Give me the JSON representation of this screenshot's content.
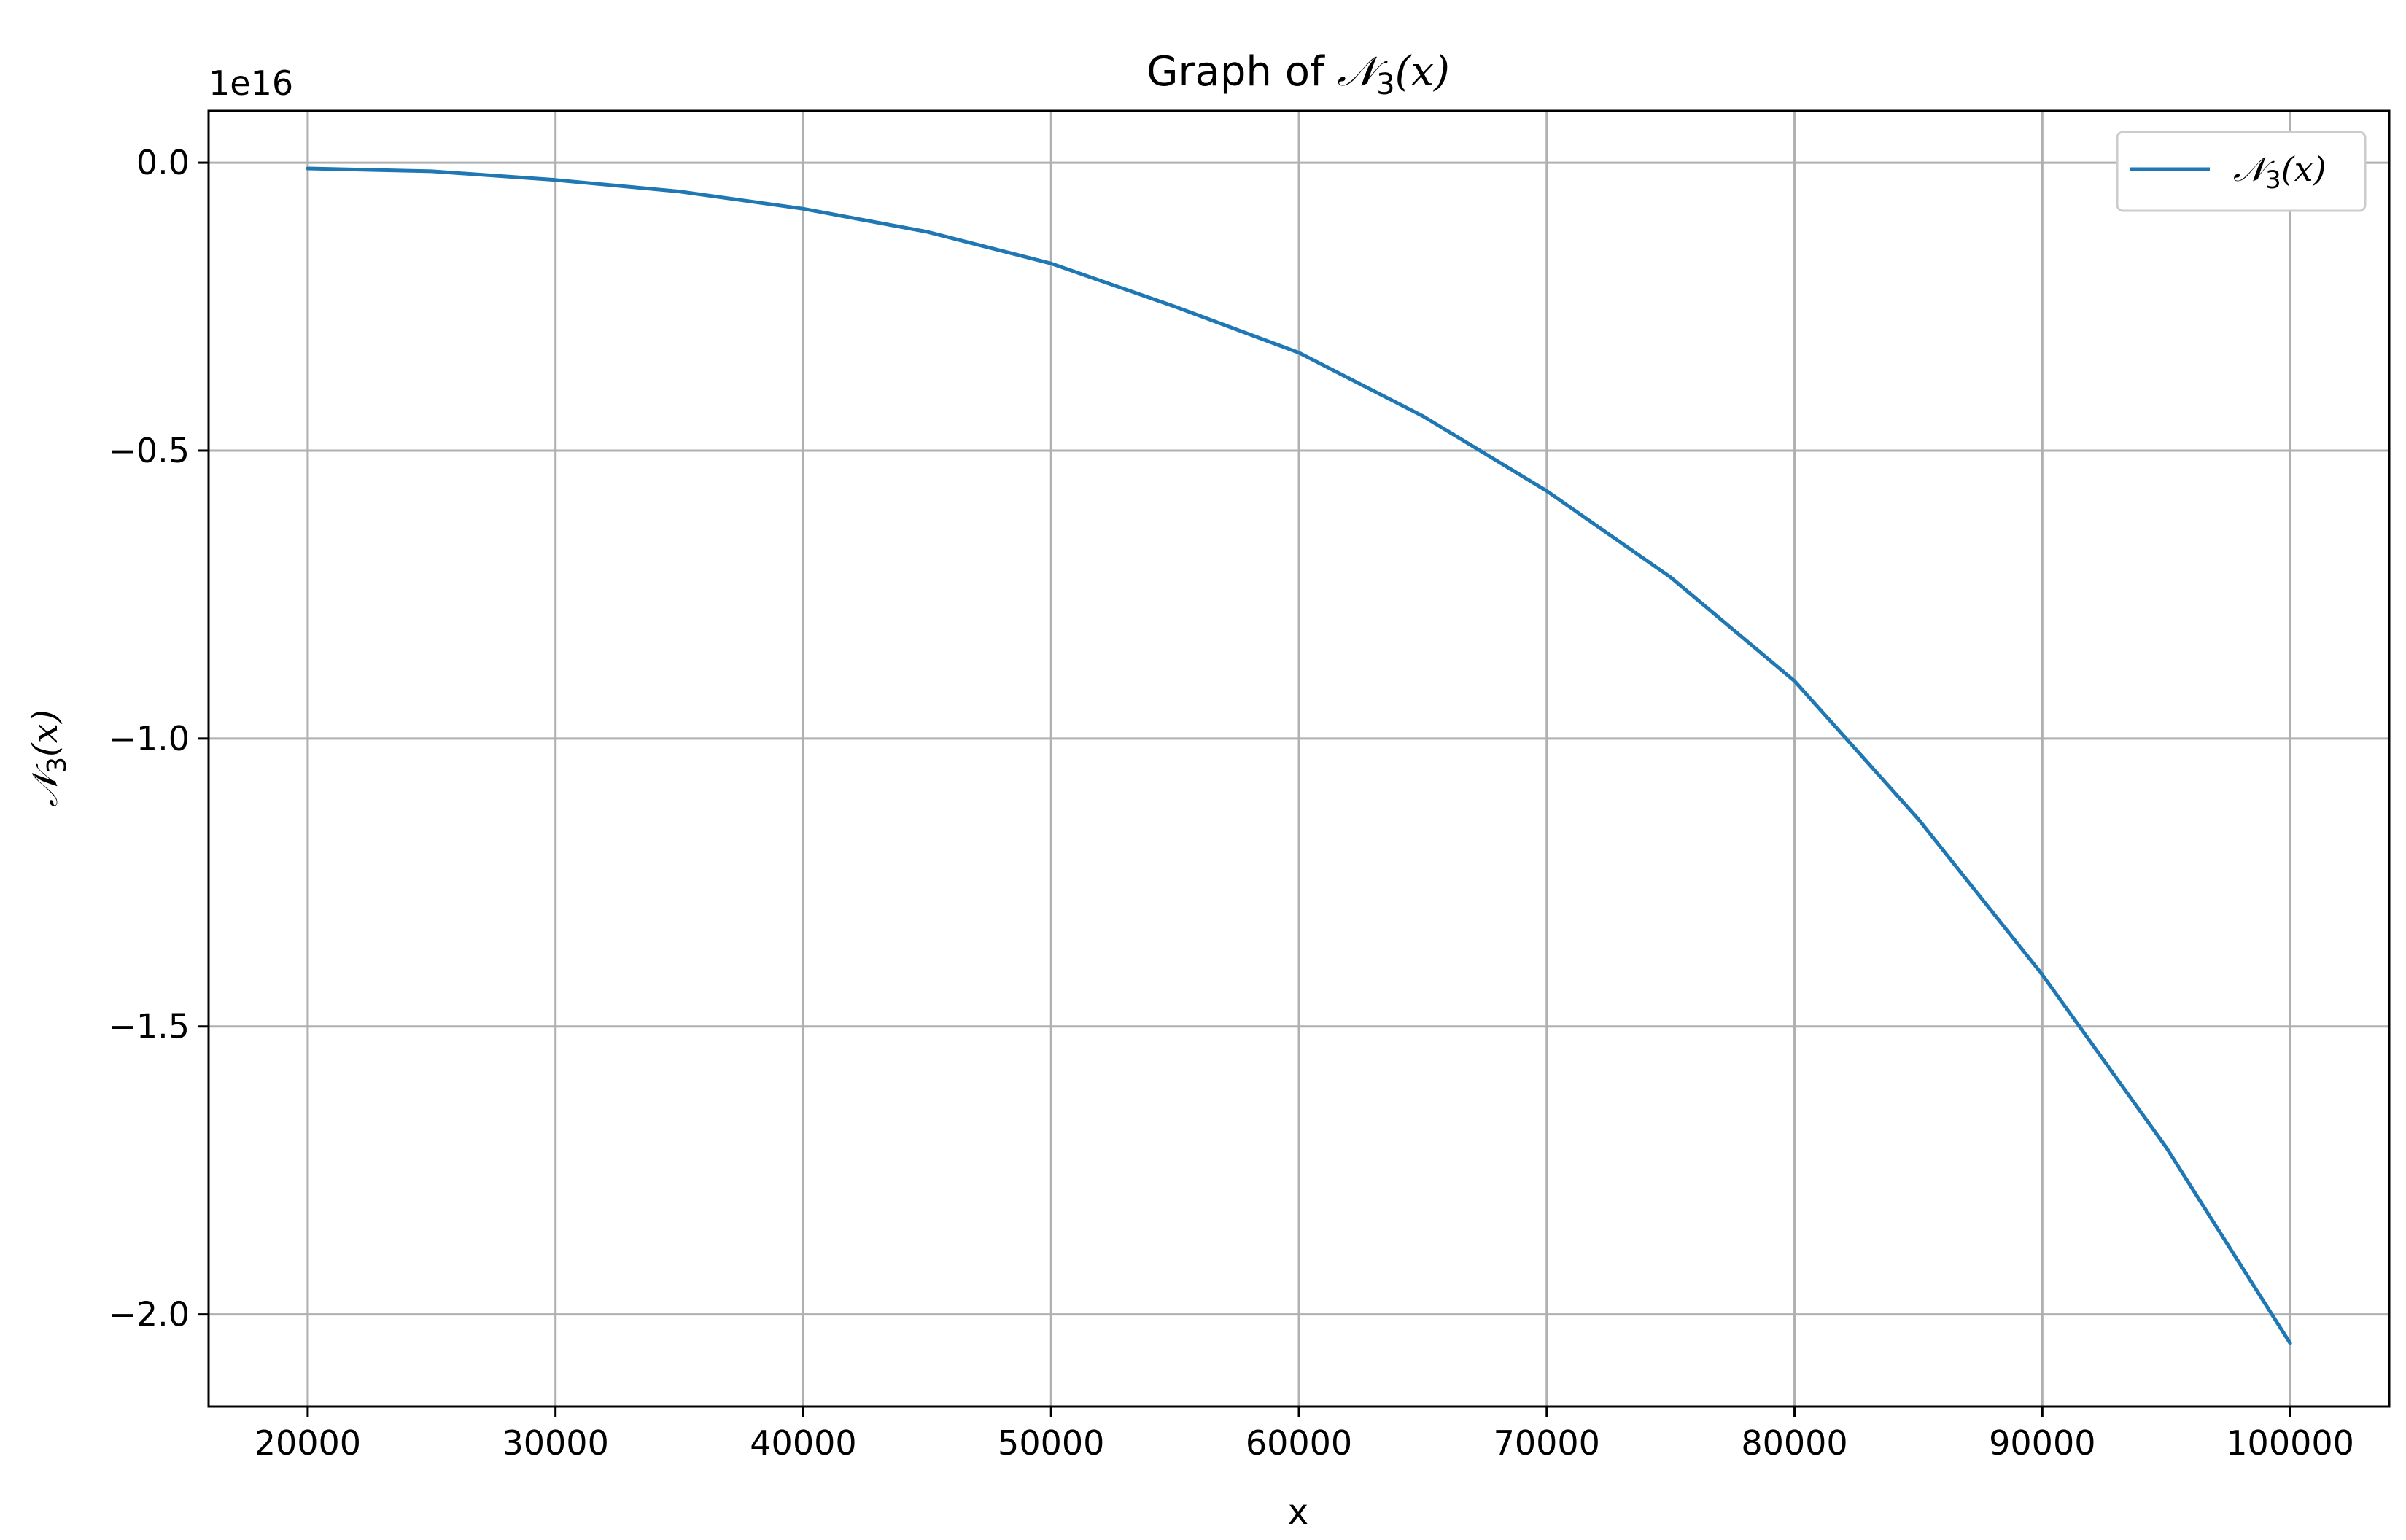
{
  "chart_data": {
    "type": "line",
    "title": {
      "prefix": "Graph of ",
      "symbol": "𝒩",
      "subscript": "3",
      "arg": "(x)"
    },
    "xlabel": "x",
    "ylabel": {
      "symbol": "𝒩",
      "subscript": "3",
      "arg": "(x)"
    },
    "offset_text": "1e16",
    "xlim": [
      16000,
      104000
    ],
    "ylim": [
      -2.16,
      0.09
    ],
    "y_units_multiplier": "1e16",
    "grid": true,
    "legend_position": "top-right",
    "x_ticks": [
      20000,
      30000,
      40000,
      50000,
      60000,
      70000,
      80000,
      90000,
      100000
    ],
    "x_tick_labels": [
      "20000",
      "30000",
      "40000",
      "50000",
      "60000",
      "70000",
      "80000",
      "90000",
      "100000"
    ],
    "y_ticks": [
      0.0,
      -0.5,
      -1.0,
      -1.5,
      -2.0
    ],
    "y_tick_labels": [
      "0.0",
      "−0.5",
      "−1.0",
      "−1.5",
      "−2.0"
    ],
    "series": [
      {
        "name": "𝒩3(x)",
        "legend": {
          "symbol": "𝒩",
          "subscript": "3",
          "arg": "(x)"
        },
        "color": "#1f77b4",
        "x": [
          20000,
          25000,
          30000,
          35000,
          40000,
          45000,
          50000,
          55000,
          60000,
          65000,
          70000,
          75000,
          80000,
          85000,
          90000,
          95000,
          100000
        ],
        "y": [
          -0.01,
          -0.015,
          -0.03,
          -0.05,
          -0.08,
          -0.12,
          -0.175,
          -0.25,
          -0.33,
          -0.44,
          -0.57,
          -0.72,
          -0.9,
          -1.14,
          -1.41,
          -1.71,
          -2.05
        ]
      }
    ]
  }
}
